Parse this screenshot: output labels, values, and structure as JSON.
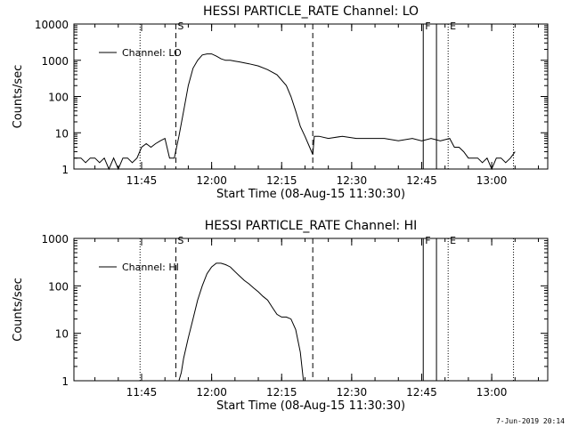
{
  "footer_date": "7-Jun-2019 20:14",
  "colors": {
    "line": "#000000",
    "background": "#ffffff"
  },
  "chart_data": [
    {
      "type": "line",
      "title": "HESSI PARTICLE_RATE Channel: LO",
      "xlabel": "Start Time (08-Aug-15 11:30:30)",
      "ylabel": "Counts/sec",
      "yscale": "log",
      "ylim": [
        1,
        10000
      ],
      "xlim": [
        "11:30:30",
        "13:12:00"
      ],
      "x_ticks": [
        "11:45",
        "12:00",
        "12:15",
        "12:30",
        "12:45",
        "13:00"
      ],
      "y_ticks": [
        "1",
        "10",
        "100",
        "1000",
        "10000"
      ],
      "legend": {
        "label": "Channel: LO",
        "position": "top-left"
      },
      "grid": false,
      "markers": [
        {
          "time": "11:44:40",
          "style": "dotted",
          "label": ""
        },
        {
          "time": "11:52:20",
          "style": "dashed",
          "label": "S"
        },
        {
          "time": "12:21:40",
          "style": "dashed",
          "label": ""
        },
        {
          "time": "12:45:20",
          "style": "solid",
          "label": "F"
        },
        {
          "time": "12:48:10",
          "style": "solid",
          "label": ""
        },
        {
          "time": "12:50:40",
          "style": "dotted",
          "label": "E"
        },
        {
          "time": "13:04:40",
          "style": "dotted",
          "label": ""
        }
      ],
      "series": [
        {
          "x": [
            "11:30:30",
            "11:32:00",
            "11:33:00",
            "11:34:00",
            "11:35:00",
            "11:36:00",
            "11:37:00",
            "11:38:00",
            "11:39:00",
            "11:40:00",
            "11:41:00",
            "11:42:00",
            "11:43:00",
            "11:44:00",
            "11:45:00",
            "11:46:00",
            "11:47:00",
            "11:48:00",
            "11:49:00",
            "11:50:00",
            "11:51:00",
            "11:52:00",
            "11:53:00",
            "11:54:00",
            "11:55:00",
            "11:56:00",
            "11:57:00",
            "11:58:00",
            "11:59:00",
            "12:00:00",
            "12:01:00",
            "12:02:00",
            "12:03:00",
            "12:04:00",
            "12:05:00",
            "12:06:00",
            "12:08:00",
            "12:10:00",
            "12:12:00",
            "12:14:00",
            "12:16:00",
            "12:17:00",
            "12:18:00",
            "12:19:00",
            "12:20:00",
            "12:21:00",
            "12:21:40",
            "12:22:00",
            "12:23:00",
            "12:25:00",
            "12:28:00",
            "12:31:00",
            "12:34:00",
            "12:37:00",
            "12:40:00",
            "12:43:00",
            "12:45:00",
            "12:47:00",
            "12:49:00",
            "12:51:00",
            "12:52:00",
            "12:53:00",
            "12:54:00",
            "12:55:00",
            "12:56:00",
            "12:57:00",
            "12:58:00",
            "12:59:00",
            "13:00:00",
            "13:01:00",
            "13:02:00",
            "13:03:00",
            "13:04:00",
            "13:05:00"
          ],
          "y": [
            2,
            2,
            1.5,
            2,
            2,
            1.5,
            2,
            1,
            2,
            1,
            2,
            2,
            1.5,
            2,
            4,
            5,
            4,
            5,
            6,
            7,
            2,
            2,
            8,
            40,
            200,
            600,
            1000,
            1400,
            1500,
            1500,
            1300,
            1100,
            1000,
            1000,
            950,
            900,
            800,
            700,
            550,
            400,
            200,
            100,
            40,
            15,
            8,
            4,
            2.5,
            8,
            8,
            7,
            8,
            7,
            7,
            7,
            6,
            7,
            6,
            7,
            6,
            7,
            4,
            4,
            3,
            2,
            2,
            2,
            1.5,
            2,
            1,
            2,
            2,
            1.5,
            2,
            3
          ]
        }
      ]
    },
    {
      "type": "line",
      "title": "HESSI PARTICLE_RATE Channel: HI",
      "xlabel": "Start Time (08-Aug-15 11:30:30)",
      "ylabel": "Counts/sec",
      "yscale": "log",
      "ylim": [
        1,
        1000
      ],
      "xlim": [
        "11:30:30",
        "13:12:00"
      ],
      "x_ticks": [
        "11:45",
        "12:00",
        "12:15",
        "12:30",
        "12:45",
        "13:00"
      ],
      "y_ticks": [
        "1",
        "10",
        "100",
        "1000"
      ],
      "legend": {
        "label": "Channel: HI",
        "position": "top-left"
      },
      "grid": false,
      "markers": [
        {
          "time": "11:44:40",
          "style": "dotted",
          "label": ""
        },
        {
          "time": "11:52:20",
          "style": "dashed",
          "label": "S"
        },
        {
          "time": "12:21:40",
          "style": "dashed",
          "label": ""
        },
        {
          "time": "12:45:20",
          "style": "solid",
          "label": "F"
        },
        {
          "time": "12:48:10",
          "style": "solid",
          "label": ""
        },
        {
          "time": "12:50:40",
          "style": "dotted",
          "label": "E"
        },
        {
          "time": "13:04:40",
          "style": "dotted",
          "label": ""
        }
      ],
      "series": [
        {
          "x": [
            "11:53:00",
            "11:53:30",
            "11:54:00",
            "11:55:00",
            "11:56:00",
            "11:57:00",
            "11:58:00",
            "11:59:00",
            "12:00:00",
            "12:01:00",
            "12:02:00",
            "12:03:00",
            "12:04:00",
            "12:05:00",
            "12:06:00",
            "12:07:00",
            "12:08:00",
            "12:09:00",
            "12:10:00",
            "12:11:00",
            "12:12:00",
            "12:13:00",
            "12:14:00",
            "12:15:00",
            "12:16:00",
            "12:17:00",
            "12:18:00",
            "12:19:00",
            "12:19:40"
          ],
          "y": [
            1,
            1.5,
            3,
            8,
            20,
            50,
            100,
            180,
            250,
            300,
            300,
            280,
            250,
            200,
            160,
            130,
            110,
            90,
            75,
            60,
            50,
            35,
            25,
            22,
            22,
            20,
            12,
            4,
            1
          ]
        }
      ]
    }
  ]
}
